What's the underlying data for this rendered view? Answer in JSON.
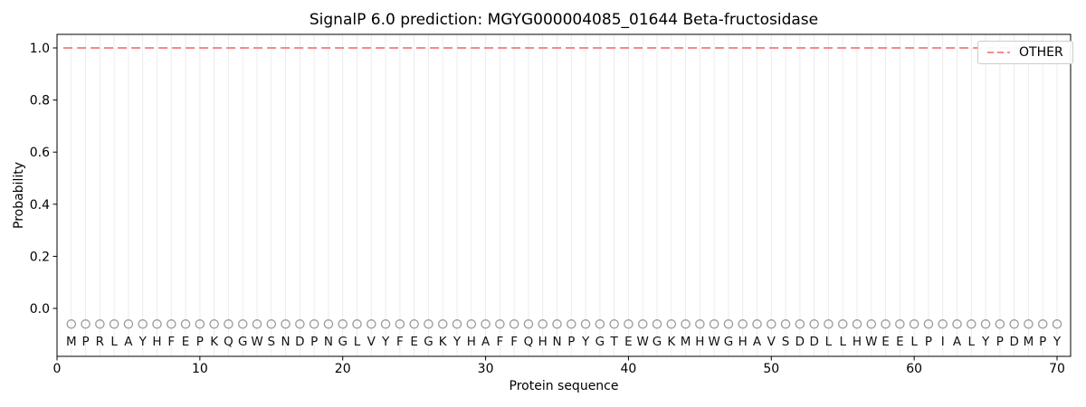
{
  "chart": {
    "title": "SignalP 6.0 prediction: MGYG000004085_01644 Beta-fructosidase",
    "xlabel": "Protein sequence",
    "ylabel": "Probability",
    "legend": {
      "label": "OTHER"
    }
  },
  "chart_data": {
    "type": "line",
    "title": "SignalP 6.0 prediction: MGYG000004085_01644 Beta-fructosidase",
    "xlabel": "Protein sequence",
    "ylabel": "Probability",
    "xlim": [
      0,
      71
    ],
    "ylim": [
      -0.18,
      1.05
    ],
    "xticks": [
      0,
      10,
      20,
      30,
      40,
      50,
      60,
      70
    ],
    "yticks": [
      0.0,
      0.2,
      0.4,
      0.6,
      0.8,
      1.0
    ],
    "grid": "vertical line at every residue position",
    "legend_position": "upper right",
    "n_positions": 70,
    "sequence": "MPRLAYHFEPKQGWSNDPNGLVYFEGKYHAFFQHNPYGTEWGKMHWGHAVSDDLLHWEELPIALYPDMPY",
    "series": [
      {
        "name": "OTHER",
        "linestyle": "dashed",
        "color": "#f28b8b",
        "values": [
          1.0,
          1.0,
          1.0,
          1.0,
          1.0,
          1.0,
          1.0,
          1.0,
          1.0,
          1.0,
          1.0,
          1.0,
          1.0,
          1.0,
          1.0,
          1.0,
          1.0,
          1.0,
          1.0,
          1.0,
          1.0,
          1.0,
          1.0,
          1.0,
          1.0,
          1.0,
          1.0,
          1.0,
          1.0,
          1.0,
          1.0,
          1.0,
          1.0,
          1.0,
          1.0,
          1.0,
          1.0,
          1.0,
          1.0,
          1.0,
          1.0,
          1.0,
          1.0,
          1.0,
          1.0,
          1.0,
          1.0,
          1.0,
          1.0,
          1.0,
          1.0,
          1.0,
          1.0,
          1.0,
          1.0,
          1.0,
          1.0,
          1.0,
          1.0,
          1.0,
          1.0,
          1.0,
          1.0,
          1.0,
          1.0,
          1.0,
          1.0,
          1.0,
          1.0,
          1.0
        ]
      }
    ],
    "markers": {
      "shape": "open-circle",
      "y": -0.06,
      "color": "#999999"
    }
  },
  "colors": {
    "line_other": "#f28b8b",
    "grid": "#ececec",
    "marker": "#999999",
    "spine": "#000000",
    "text": "#000000",
    "legend_border": "#cccccc"
  }
}
